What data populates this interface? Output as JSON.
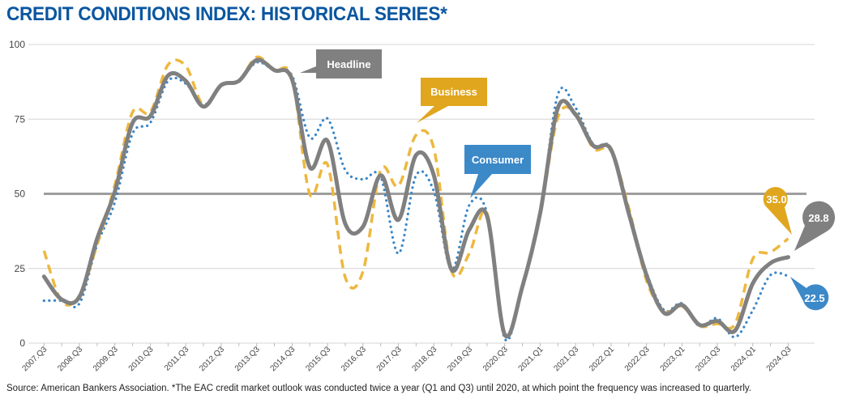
{
  "title": "CREDIT CONDITIONS INDEX: HISTORICAL SERIES*",
  "footnote": "Source: American Bankers Association. *The EAC credit market outlook was conducted twice a year (Q1 and Q3) until 2020, at which point the frequency was increased to quarterly.",
  "chart_data": {
    "type": "line",
    "title": "CREDIT CONDITIONS INDEX: HISTORICAL SERIES*",
    "xlabel": "",
    "ylabel": "",
    "ylim": [
      0,
      100
    ],
    "yticks": [
      "0",
      "25",
      "50",
      "75",
      "100"
    ],
    "grid": true,
    "reference_line": 50,
    "categories": [
      "2007.Q3",
      "2008.Q1",
      "2008.Q3",
      "2009.Q1",
      "2009.Q3",
      "2010.Q1",
      "2010.Q3",
      "2011.Q1",
      "2011.Q3",
      "2012.Q1",
      "2012.Q3",
      "2013.Q1",
      "2013.Q3",
      "2014.Q1",
      "2014.Q3",
      "2015.Q1",
      "2015.Q3",
      "2016.Q1",
      "2016.Q3",
      "2017.Q1",
      "2017.Q3",
      "2018.Q1",
      "2018.Q3",
      "2019.Q1",
      "2019.Q3",
      "2020.Q1",
      "2020.Q3",
      "2020.Q4",
      "2021.Q1",
      "2021.Q2",
      "2021.Q3",
      "2021.Q4",
      "2022.Q1",
      "2022.Q2",
      "2022.Q3",
      "2022.Q4",
      "2023.Q1",
      "2023.Q2",
      "2023.Q3",
      "2023.Q4",
      "2024.Q1",
      "2024.Q2",
      "2024.Q3"
    ],
    "tick_labels": [
      "2007.Q3",
      "2008.Q3",
      "2009.Q3",
      "2010.Q3",
      "2011.Q3",
      "2012.Q3",
      "2013.Q3",
      "2014.Q3",
      "2015.Q3",
      "2016.Q3",
      "2017.Q3",
      "2018.Q3",
      "2019.Q3",
      "2020.Q3",
      "2021.Q1",
      "2021.Q3",
      "2022.Q1",
      "2022.Q3",
      "2023.Q1",
      "2023.Q3",
      "2024.Q1",
      "2024.Q3"
    ],
    "series": [
      {
        "name": "Headline",
        "color": "#808080",
        "style": "solid",
        "values": [
          22.3,
          14.6,
          15.5,
          35,
          50.8,
          73.8,
          76,
          89.6,
          87.8,
          79.2,
          86.4,
          87.8,
          94.8,
          91.4,
          88.3,
          58.9,
          67.7,
          40,
          39,
          56.2,
          41.3,
          63,
          56.2,
          24.6,
          38,
          42.6,
          2.9,
          19,
          43.5,
          78.8,
          76.5,
          66.1,
          64.8,
          43.5,
          22.8,
          10.1,
          12.8,
          6.1,
          7.4,
          4.2,
          20,
          26.8,
          28.8
        ],
        "end_label": "28.8"
      },
      {
        "name": "Business",
        "color": "#EDB83F",
        "style": "dashed",
        "values": [
          30.9,
          14,
          16,
          33,
          53,
          77.4,
          77.4,
          93.2,
          92.8,
          79.7,
          86.4,
          87.8,
          95.8,
          91.4,
          88.7,
          49.9,
          59.8,
          22,
          24,
          58,
          52.6,
          69.7,
          65.2,
          24.1,
          30,
          43.5,
          2.5,
          19,
          43,
          75.6,
          77,
          65.2,
          64.3,
          45.3,
          21,
          10.6,
          12.4,
          5.8,
          6.5,
          6.5,
          28.2,
          30.4,
          35.0
        ],
        "end_label": "35.0"
      },
      {
        "name": "Consumer",
        "color": "#3A87C8",
        "style": "dotted",
        "values": [
          14.2,
          14.2,
          13.3,
          33,
          47.2,
          70.2,
          73.8,
          87.8,
          86.9,
          79.7,
          86.4,
          87.8,
          94,
          91.4,
          89.6,
          68.8,
          75.2,
          58,
          54.8,
          55.7,
          30,
          56.2,
          50.8,
          24.6,
          46.2,
          43.5,
          1.5,
          19,
          43,
          83.3,
          78.8,
          66.6,
          65.2,
          43.5,
          23.7,
          11,
          13.3,
          5.6,
          8.3,
          2,
          11,
          22.8,
          22.5
        ],
        "end_label": "22.5"
      }
    ],
    "callout_colors": {
      "Headline": "#808080",
      "Business": "#E0A61E",
      "Consumer": "#3C89C8"
    }
  }
}
